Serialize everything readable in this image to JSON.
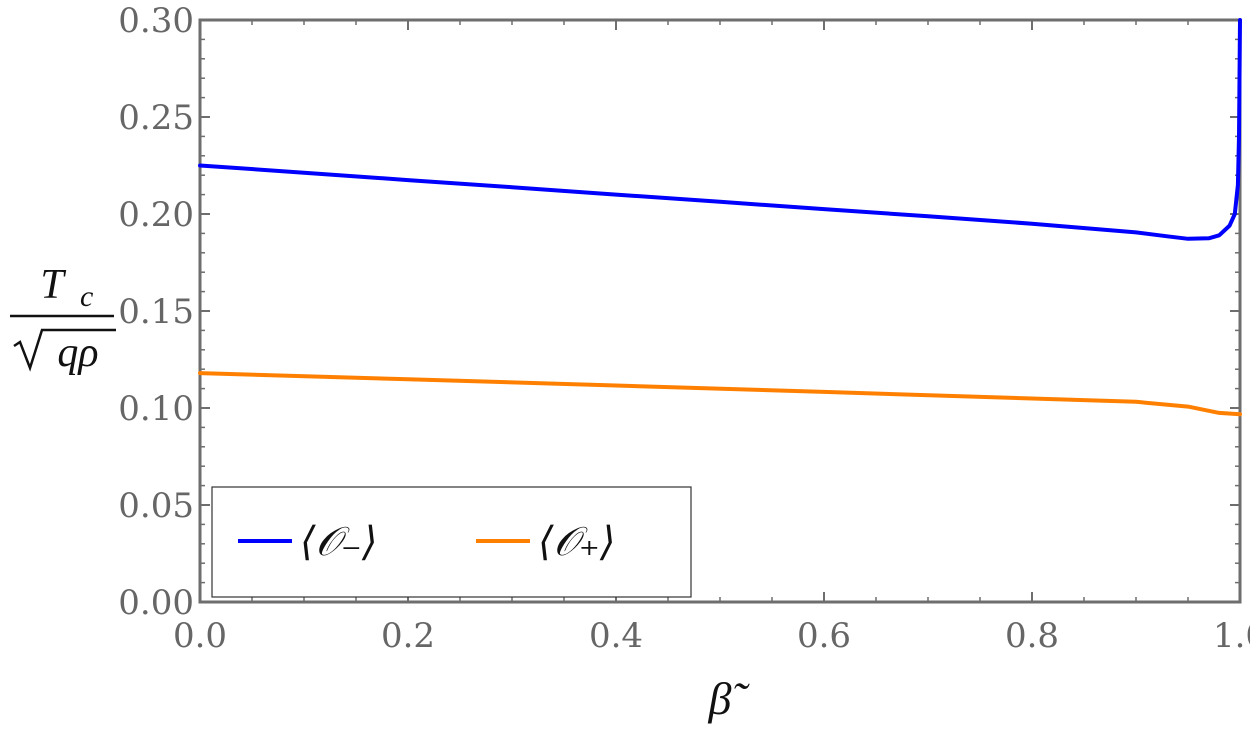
{
  "chart_data": {
    "type": "line",
    "xlabel": "β̃",
    "ylabel": {
      "numerator": "T",
      "numerator_sub": "c",
      "denominator": "qρ"
    },
    "xlim": [
      0.0,
      1.0
    ],
    "ylim": [
      0.0,
      0.3
    ],
    "x_ticks": [
      "0.0",
      "0.2",
      "0.4",
      "0.6",
      "0.8",
      "1.0"
    ],
    "y_ticks": [
      "0.00",
      "0.05",
      "0.10",
      "0.15",
      "0.20",
      "0.25",
      "0.30"
    ],
    "grid": false,
    "legend_position": "bottom-left",
    "series": [
      {
        "name": "⟨𝒪₋⟩",
        "color": "#0000ff",
        "x": [
          0.0,
          0.1,
          0.2,
          0.3,
          0.4,
          0.5,
          0.6,
          0.7,
          0.8,
          0.9,
          0.93,
          0.95,
          0.97,
          0.98,
          0.99,
          0.995,
          0.998,
          0.999,
          1.0
        ],
        "y": [
          0.225,
          0.2213,
          0.2175,
          0.2138,
          0.21,
          0.2063,
          0.2025,
          0.1988,
          0.195,
          0.1905,
          0.1885,
          0.1872,
          0.1875,
          0.189,
          0.194,
          0.2,
          0.215,
          0.24,
          0.3
        ]
      },
      {
        "name": "⟨𝒪₊⟩",
        "color": "#ff8000",
        "x": [
          0.0,
          0.2,
          0.4,
          0.6,
          0.8,
          0.9,
          0.95,
          0.98,
          1.0
        ],
        "y": [
          0.118,
          0.1148,
          0.1116,
          0.1083,
          0.1049,
          0.1032,
          0.1007,
          0.0975,
          0.0968
        ]
      }
    ]
  }
}
